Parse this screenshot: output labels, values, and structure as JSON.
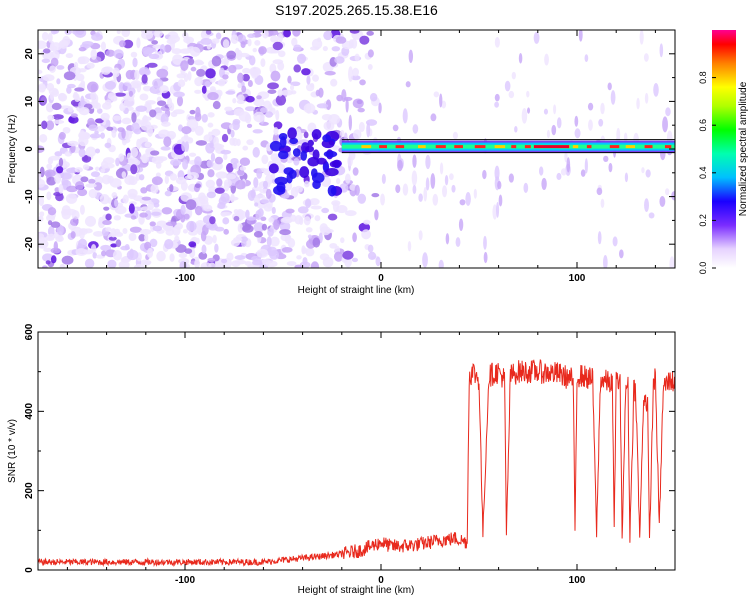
{
  "title": "S197.2025.265.15.38.E16",
  "colors": {
    "snr_line": "#e8291d",
    "spectro_core": "#e8002a",
    "spectro_outer": "#c8a8f0",
    "spectro_mid": "#7a3df0"
  },
  "chart_data": [
    {
      "type": "heatmap",
      "name": "spectrogram",
      "xlabel": "Height of straight line (km)",
      "ylabel": "Frequency (Hz)",
      "xlim": [
        -175,
        150
      ],
      "ylim": [
        -25,
        25
      ],
      "xticks": [
        -100,
        0,
        100
      ],
      "yticks": [
        -20,
        -10,
        0,
        10,
        20
      ],
      "xtick_labels": [
        "-100",
        "0",
        "100"
      ],
      "ytick_labels": [
        "-20",
        "-10",
        "0",
        "10",
        "20"
      ],
      "colorbar": {
        "label": "Normalized spectral amplitude",
        "range": [
          0,
          1
        ],
        "ticks": [
          "0.0",
          "0.2",
          "0.4",
          "0.6",
          "0.8"
        ],
        "tick_values": [
          0.0,
          0.2,
          0.4,
          0.6,
          0.8
        ]
      },
      "carrier_line_frequency": 0.5,
      "noise_region_x": [
        -175,
        -20
      ],
      "signal_onset_x": -20
    },
    {
      "type": "line",
      "name": "snr",
      "xlabel": "Height of straight line (km)",
      "ylabel": "SNR (10 * v/v)",
      "xlim": [
        -175,
        150
      ],
      "ylim": [
        0,
        600
      ],
      "xticks": [
        -100,
        0,
        100
      ],
      "yticks": [
        0,
        200,
        400,
        600
      ],
      "xtick_labels": [
        "-100",
        "0",
        "100"
      ],
      "ytick_labels": [
        "0",
        "200",
        "400",
        "600"
      ],
      "series": [
        {
          "name": "SNR",
          "x": [
            -175,
            -150,
            -120,
            -90,
            -60,
            -50,
            -40,
            -30,
            -20,
            -10,
            -5,
            0,
            5,
            10,
            20,
            30,
            38,
            44,
            45,
            47,
            50,
            52,
            55,
            60,
            63,
            64,
            66,
            70,
            80,
            90,
            98,
            99,
            100,
            102,
            105,
            108,
            110,
            112,
            118,
            119,
            120,
            122,
            123,
            125,
            126,
            127,
            129,
            130,
            132,
            134,
            136,
            137,
            139,
            140,
            142,
            144,
            146,
            148,
            150
          ],
          "y": [
            20,
            20,
            20,
            20,
            20,
            25,
            30,
            35,
            40,
            50,
            60,
            70,
            60,
            60,
            65,
            75,
            80,
            70,
            490,
            500,
            480,
            90,
            490,
            500,
            480,
            85,
            490,
            500,
            500,
            495,
            480,
            100,
            490,
            490,
            485,
            480,
            95,
            480,
            470,
            95,
            480,
            470,
            90,
            470,
            460,
            85,
            460,
            450,
            80,
            440,
            420,
            70,
            480,
            480,
            110,
            460,
            470,
            480,
            470
          ]
        }
      ]
    }
  ]
}
